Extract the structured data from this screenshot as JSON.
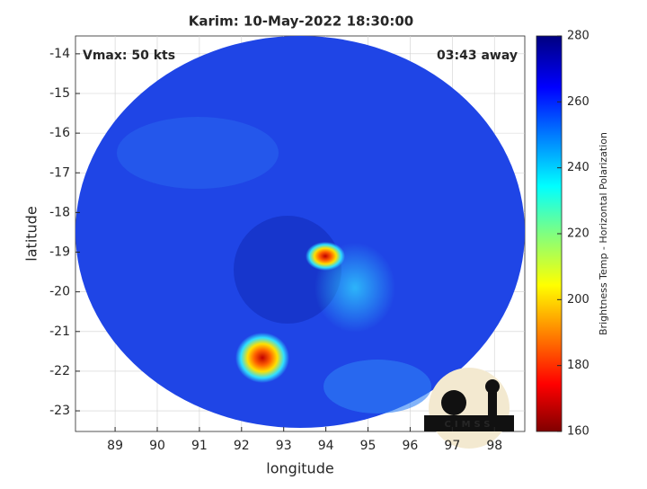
{
  "chart_data": {
    "type": "image",
    "title": "Karim: 10-May-2022 18:30:00",
    "annotations": [
      "Vmax: 50 kts",
      "03:43 away"
    ],
    "x_label": "longitude",
    "y_label": "latitude",
    "xlim": [
      88.06,
      98.72
    ],
    "xticks": [
      89,
      90,
      91,
      92,
      93,
      94,
      95,
      96,
      97,
      98
    ],
    "ylim": [
      -23.52,
      -13.55
    ],
    "yticks": [
      -23,
      -22,
      -21,
      -20,
      -19,
      -18,
      -17,
      -16,
      -15,
      -14
    ],
    "grid": true,
    "colorbar": {
      "label": "Brightness Temp - Horizontal Polarization",
      "clim": [
        160,
        280
      ],
      "ticks": [
        160,
        180,
        200,
        220,
        240,
        260,
        280
      ]
    },
    "logo": "CIMSS"
  }
}
